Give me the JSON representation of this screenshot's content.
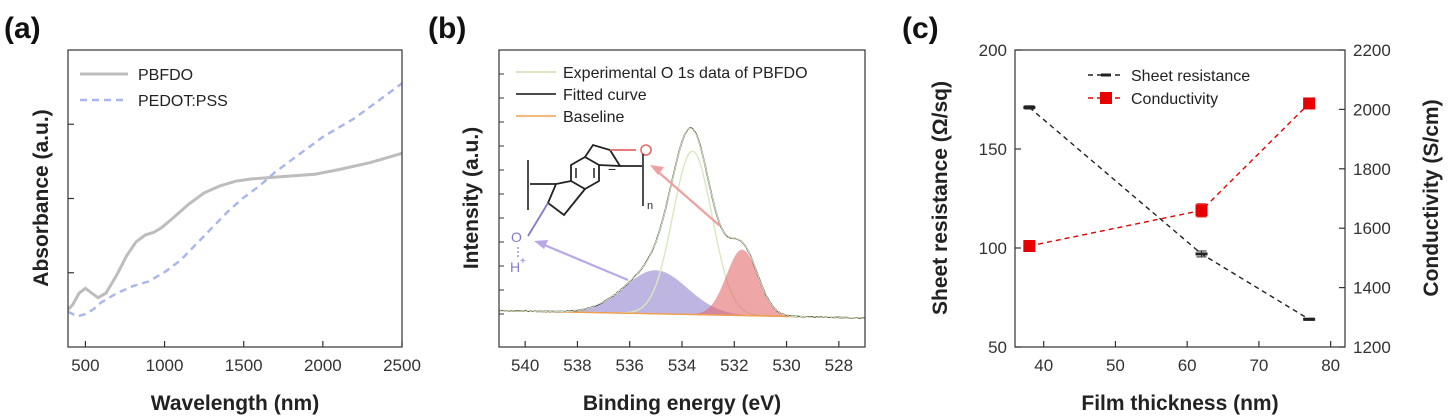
{
  "figure": {
    "panels": [
      {
        "letter": "(a)"
      },
      {
        "letter": "(b)"
      },
      {
        "letter": "(c)"
      }
    ]
  },
  "chart_data": [
    {
      "type": "line",
      "xlabel": "Wavelength (nm)",
      "ylabel": "Absorbance (a.u.)",
      "xlim": [
        390,
        2500
      ],
      "ylim": [
        0,
        1
      ],
      "xticks": [
        500,
        1000,
        1500,
        2000,
        2500
      ],
      "y_tick_labels_shown": false,
      "legend_position": "top-left",
      "series": [
        {
          "name": "PBFDO",
          "color": "#bdbdbd",
          "style": "solid",
          "x": [
            390,
            420,
            460,
            500,
            540,
            580,
            630,
            700,
            760,
            820,
            880,
            930,
            980,
            1050,
            1150,
            1250,
            1350,
            1450,
            1550,
            1650,
            1750,
            1850,
            1950,
            2100,
            2300,
            2500
          ],
          "y": [
            0.08,
            0.1,
            0.15,
            0.17,
            0.15,
            0.13,
            0.15,
            0.23,
            0.31,
            0.37,
            0.4,
            0.41,
            0.43,
            0.47,
            0.53,
            0.58,
            0.61,
            0.63,
            0.64,
            0.645,
            0.65,
            0.655,
            0.66,
            0.68,
            0.71,
            0.75
          ]
        },
        {
          "name": "PEDOT:PSS",
          "color": "#a8b6ec",
          "style": "dashed",
          "x": [
            390,
            450,
            500,
            550,
            600,
            700,
            800,
            900,
            1000,
            1100,
            1200,
            1300,
            1400,
            1500,
            1600,
            1700,
            1800,
            1900,
            2000,
            2100,
            2200,
            2300,
            2400,
            2500
          ],
          "y": [
            0.07,
            0.05,
            0.06,
            0.08,
            0.11,
            0.15,
            0.18,
            0.2,
            0.24,
            0.29,
            0.36,
            0.43,
            0.5,
            0.56,
            0.61,
            0.67,
            0.72,
            0.77,
            0.82,
            0.86,
            0.9,
            0.95,
            1.0,
            1.05
          ]
        }
      ]
    },
    {
      "type": "area",
      "xlabel": "Binding energy (eV)",
      "ylabel": "Intensity (a.u.)",
      "xlim": [
        541,
        527
      ],
      "ylim": [
        0,
        1
      ],
      "x_reversed": true,
      "xticks": [
        540,
        538,
        536,
        534,
        532,
        530,
        528
      ],
      "y_tick_labels_shown": false,
      "legend_position": "top-left",
      "series": [
        {
          "name": "Experimental O 1s data of PBFDO",
          "color": "#dbe8c6"
        },
        {
          "name": "Fitted curve",
          "color": "#111111"
        },
        {
          "name": "Baseline",
          "color": "#f0a050"
        }
      ],
      "components": [
        {
          "center": 535.0,
          "height": 0.165,
          "width": 1.2,
          "color": "#8878cc"
        },
        {
          "center": 533.6,
          "height": 0.62,
          "width": 0.75,
          "color": "#d8e8c0"
        },
        {
          "center": 531.7,
          "height": 0.25,
          "width": 0.6,
          "color": "#e46a6a"
        }
      ],
      "baseline": {
        "left": 0.028,
        "right": 0.0
      },
      "molecule": {
        "subscript": "n",
        "bottom_atom": "O",
        "proton_label": "H",
        "proton_charge": "+",
        "radical_charge": "−"
      }
    },
    {
      "type": "line",
      "xlabel": "Film thickness (nm)",
      "ylabel_left": "Sheet resistance (Ω/sq)",
      "ylabel_right": "Conductivity (S/cm)",
      "xlim": [
        36,
        82
      ],
      "xticks": [
        40,
        50,
        60,
        70,
        80
      ],
      "ylim_left": [
        50,
        200
      ],
      "yticks_left": [
        50,
        100,
        150,
        200
      ],
      "ylim_right": [
        1200,
        2200
      ],
      "yticks_right": [
        1200,
        1400,
        1600,
        1800,
        2000,
        2200
      ],
      "legend_position": "top-right",
      "series": [
        {
          "name": "Sheet resistance",
          "axis": "left",
          "color": "#222222",
          "style": "dashed",
          "marker": "dash",
          "x": [
            38,
            62,
            77
          ],
          "y": [
            171,
            97,
            64
          ],
          "err": [
            0.8,
            1.5,
            0.5
          ]
        },
        {
          "name": "Conductivity",
          "axis": "right",
          "color": "#e60000",
          "style": "dashed",
          "marker": "square",
          "x": [
            38,
            62,
            77
          ],
          "y": [
            1540,
            1660,
            2020
          ],
          "err": [
            8,
            22,
            8
          ]
        }
      ]
    }
  ]
}
